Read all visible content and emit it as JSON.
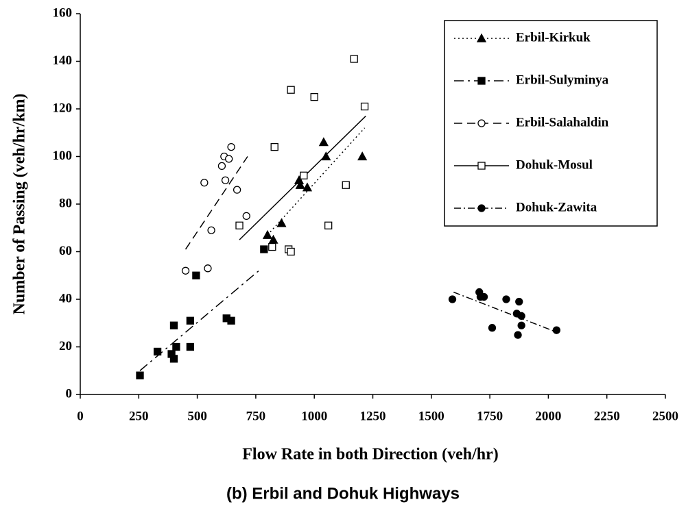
{
  "chart_data": {
    "type": "scatter",
    "title": "(b) Erbil and Dohuk Highways",
    "x_label": "Flow  Rate in both Direction (veh/hr)",
    "y_label": "Number of Passing (veh/hr/km)",
    "xlim": [
      0,
      2500
    ],
    "xticks": [
      0,
      250,
      500,
      750,
      1000,
      1250,
      1500,
      1750,
      2000,
      2250,
      2500
    ],
    "ylim": [
      0,
      160
    ],
    "yticks": [
      0,
      20,
      40,
      60,
      80,
      100,
      120,
      140,
      160
    ],
    "legend": "upper right",
    "series": [
      {
        "name": "Erbil-Kirkuk",
        "color": "#000000",
        "marker": "triangle",
        "filled": true,
        "dash": "2 4",
        "x": [
          800,
          825,
          860,
          935,
          940,
          970,
          1040,
          1050,
          1205
        ],
        "values": [
          67,
          65,
          72,
          90,
          88,
          87,
          106,
          100,
          100
        ],
        "trend_x": [
          800,
          1215
        ],
        "trend_y": [
          67,
          112
        ]
      },
      {
        "name": "Erbil-Sulyminya",
        "color": "#000000",
        "marker": "square",
        "filled": true,
        "dash": "14 6 3 6",
        "x": [
          255,
          330,
          390,
          400,
          400,
          410,
          470,
          470,
          495,
          625,
          645,
          785
        ],
        "values": [
          8,
          18,
          17,
          15,
          29,
          20,
          31,
          20,
          50,
          32,
          31,
          61
        ],
        "trend_x": [
          255,
          775
        ],
        "trend_y": [
          10,
          53
        ]
      },
      {
        "name": "Erbil-Salahaldin",
        "color": "#000000",
        "marker": "circle",
        "filled": false,
        "dash": "12 7",
        "x": [
          450,
          545,
          530,
          560,
          605,
          615,
          620,
          635,
          645,
          670,
          710
        ],
        "values": [
          52,
          53,
          89,
          69,
          96,
          100,
          90,
          99,
          104,
          86,
          75
        ],
        "trend_x": [
          450,
          715
        ],
        "trend_y": [
          61,
          100
        ]
      },
      {
        "name": "Dohuk-Mosul",
        "color": "#000000",
        "marker": "square",
        "filled": false,
        "dash": "",
        "x": [
          680,
          820,
          830,
          890,
          900,
          900,
          955,
          1000,
          1060,
          1135,
          1170,
          1215
        ],
        "values": [
          71,
          62,
          104,
          61,
          60,
          128,
          92,
          125,
          71,
          88,
          141,
          121
        ],
        "trend_x": [
          680,
          1220
        ],
        "trend_y": [
          65,
          117
        ]
      },
      {
        "name": "Dohuk-Zawita",
        "color": "#000000",
        "marker": "circle",
        "filled": true,
        "dash": "10 4 2 4",
        "x": [
          1590,
          1705,
          1710,
          1725,
          1760,
          1820,
          1865,
          1870,
          1875,
          1885,
          1885,
          2035
        ],
        "values": [
          40,
          43,
          41,
          41,
          28,
          40,
          34,
          25,
          39,
          33,
          29,
          27
        ],
        "trend_x": [
          1595,
          2040
        ],
        "trend_y": [
          43,
          26
        ]
      }
    ]
  }
}
